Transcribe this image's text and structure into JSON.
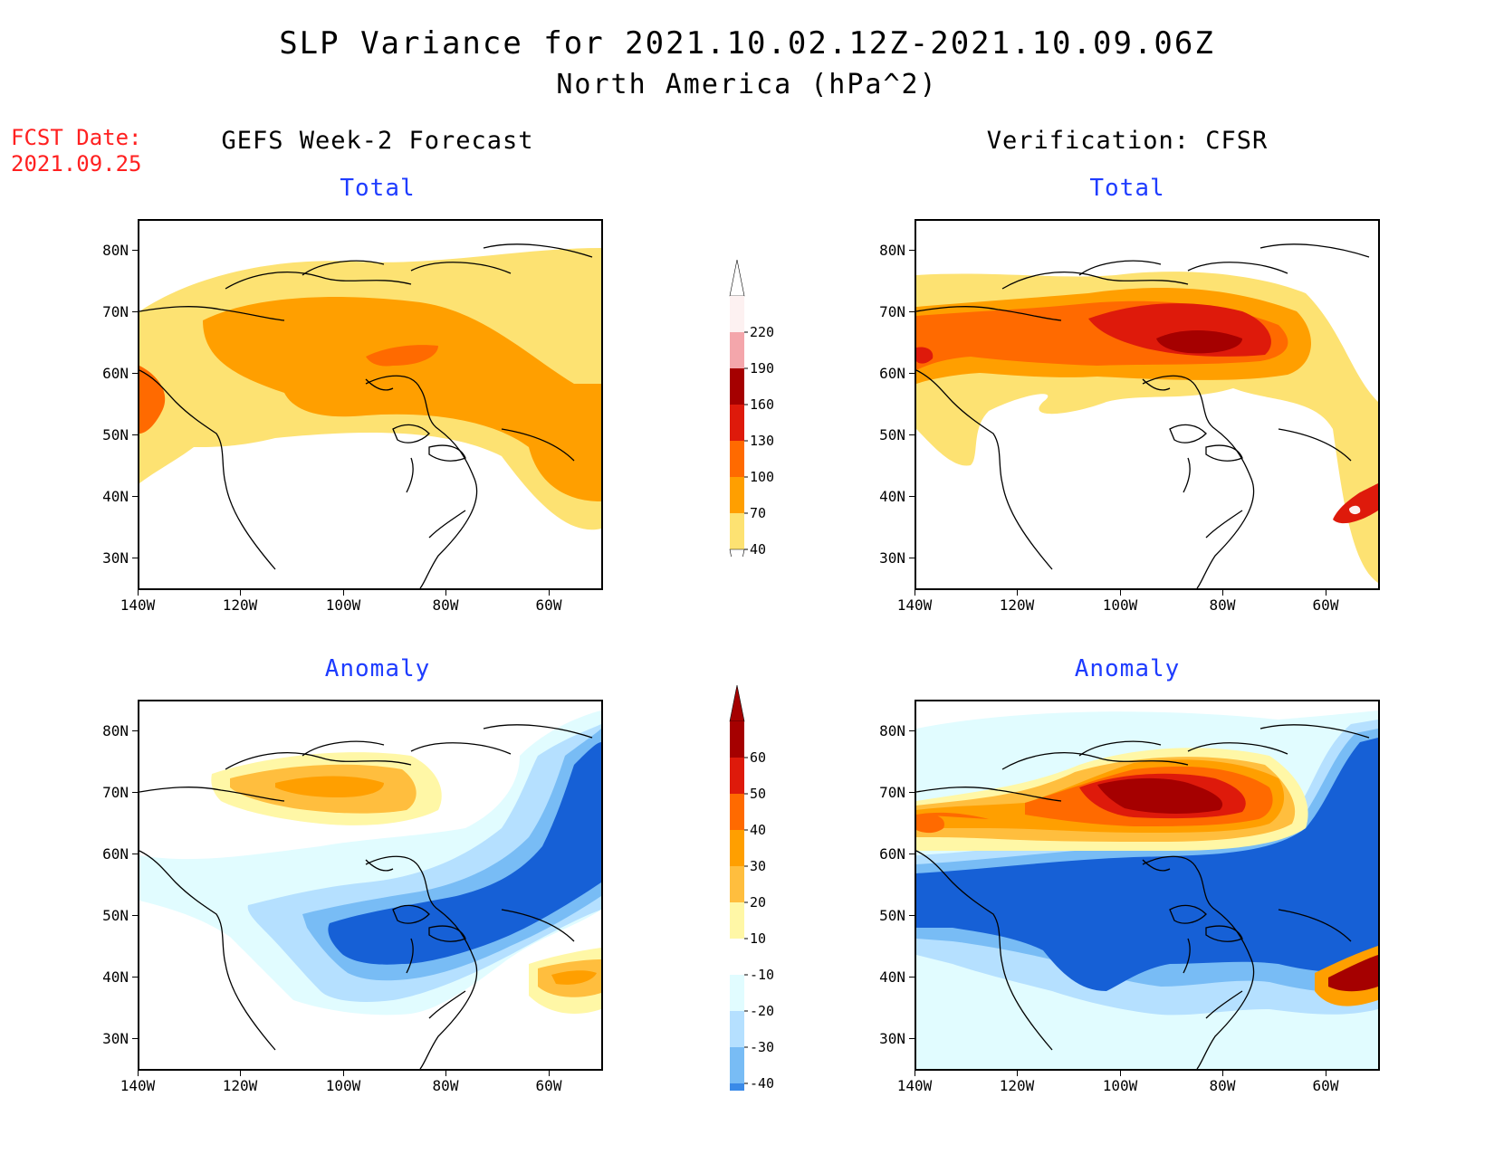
{
  "header": {
    "title": "SLP Variance for 2021.10.02.12Z-2021.10.09.06Z",
    "subtitle": "North America (hPa^2)",
    "fcst_line1": "FCST Date:",
    "fcst_line2": "2021.09.25"
  },
  "columns": {
    "left": "GEFS Week-2 Forecast",
    "right": "Verification: CFSR"
  },
  "panels": {
    "top_left": "Total",
    "top_right": "Total",
    "bottom_left": "Anomaly",
    "bottom_right": "Anomaly"
  },
  "axes": {
    "lat_labels": [
      "80N",
      "70N",
      "60N",
      "50N",
      "40N",
      "30N"
    ],
    "lon_labels": [
      "140W",
      "120W",
      "100W",
      "80W",
      "60W"
    ]
  },
  "total_colorbar": {
    "labels": [
      "220",
      "190",
      "160",
      "130",
      "100",
      "70",
      "40"
    ],
    "colors": [
      "#fdf1f1",
      "#f4a6ab",
      "#a50000",
      "#de1a0b",
      "#ff6a00",
      "#ff9f00",
      "#fde272"
    ]
  },
  "anomaly_colorbar": {
    "labels": [
      "60",
      "50",
      "40",
      "30",
      "20",
      "10",
      "-10",
      "-20",
      "-30",
      "-40"
    ],
    "colors": [
      "#a50000",
      "#de1a0b",
      "#ff6a00",
      "#ff9f00",
      "#ffbe3e",
      "#fff7a6",
      "#ffffff",
      "#e1fcff",
      "#b5e0ff",
      "#78bcf5",
      "#3a8ae8",
      "#1660d6"
    ]
  },
  "chart_data": {
    "type": "heatmap",
    "quantity": "SLP variance",
    "unit": "hPa^2",
    "lon_range": [
      "140W",
      "50W"
    ],
    "lat_range": [
      "25N",
      "85N"
    ],
    "panels": [
      {
        "name": "GEFS Week-2 Forecast Total",
        "levels": [
          40,
          70,
          100,
          130,
          160,
          190,
          220
        ],
        "max_level": 100
      },
      {
        "name": "Verification CFSR Total",
        "levels": [
          40,
          70,
          100,
          130,
          160,
          190,
          220
        ],
        "max_level": 190
      },
      {
        "name": "GEFS Week-2 Forecast Anomaly",
        "levels": [
          -40,
          -30,
          -20,
          -10,
          10,
          20,
          30,
          40,
          50,
          60
        ],
        "min_level": -40,
        "max_level": 30
      },
      {
        "name": "Verification CFSR Anomaly",
        "levels": [
          -40,
          -30,
          -20,
          -10,
          10,
          20,
          30,
          40,
          50,
          60
        ],
        "min_level": -40,
        "max_level": 60
      }
    ]
  }
}
